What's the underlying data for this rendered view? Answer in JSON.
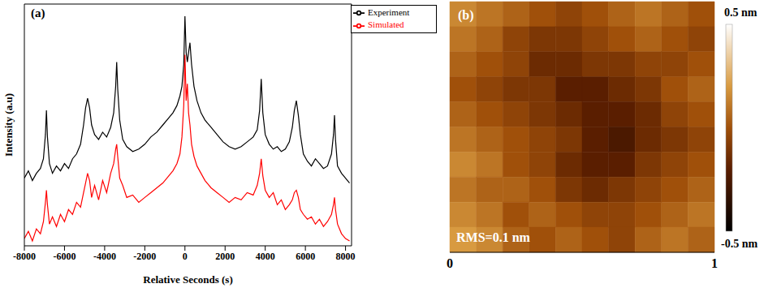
{
  "chart_data": [
    {
      "type": "line",
      "annotation": "(a)",
      "x_label": "Relative Seconds (s)",
      "y_label": "Intensity (a.u)",
      "xlim": [
        -8000,
        8300
      ],
      "xticks": [
        -8000,
        -6000,
        -4000,
        -2000,
        0,
        2000,
        4000,
        6000,
        8000
      ],
      "ylim": [
        0,
        100
      ],
      "tick_labels": "x",
      "legend": "upper right",
      "x": [
        -8000,
        -7800,
        -7600,
        -7400,
        -7200,
        -7050,
        -6950,
        -6900,
        -6850,
        -6750,
        -6600,
        -6400,
        -6200,
        -6000,
        -5800,
        -5600,
        -5400,
        -5200,
        -5050,
        -4950,
        -4850,
        -4750,
        -4650,
        -4500,
        -4300,
        -4100,
        -3900,
        -3700,
        -3550,
        -3450,
        -3400,
        -3350,
        -3250,
        -3100,
        -2900,
        -2600,
        -2300,
        -2000,
        -1700,
        -1400,
        -1100,
        -800,
        -600,
        -400,
        -250,
        -150,
        -60,
        0,
        60,
        120,
        180,
        250,
        330,
        450,
        600,
        800,
        1000,
        1300,
        1600,
        1900,
        2200,
        2500,
        2800,
        3100,
        3400,
        3600,
        3720,
        3800,
        3880,
        4000,
        4200,
        4400,
        4600,
        4800,
        5000,
        5200,
        5350,
        5450,
        5550,
        5650,
        5750,
        5900,
        6100,
        6300,
        6500,
        6700,
        6900,
        7100,
        7300,
        7400,
        7450,
        7500,
        7600,
        7800,
        8000,
        8200
      ],
      "series": [
        {
          "name": "Experiment",
          "color": "#000000",
          "values": [
            28,
            31,
            27,
            30,
            32,
            36,
            46,
            56,
            45,
            34,
            30,
            33,
            31,
            34,
            32,
            36,
            38,
            42,
            50,
            57,
            61,
            57,
            50,
            46,
            44,
            47,
            45,
            49,
            55,
            66,
            76,
            65,
            52,
            44,
            41,
            39,
            40,
            42,
            45,
            47,
            50,
            53,
            55,
            58,
            62,
            66,
            75,
            95,
            80,
            76,
            80,
            84,
            75,
            66,
            60,
            55,
            52,
            49,
            46,
            43,
            41,
            40,
            41,
            43,
            45,
            48,
            56,
            69,
            55,
            46,
            42,
            40,
            41,
            39,
            40,
            43,
            49,
            56,
            60,
            54,
            46,
            38,
            35,
            33,
            36,
            34,
            32,
            33,
            38,
            46,
            54,
            44,
            33,
            30,
            28,
            26
          ]
        },
        {
          "name": "Simulated",
          "color": "#ff0000",
          "values": [
            3,
            6,
            2,
            7,
            5,
            10,
            18,
            23,
            17,
            9,
            12,
            8,
            13,
            10,
            15,
            13,
            18,
            16,
            22,
            26,
            30,
            27,
            20,
            25,
            19,
            27,
            22,
            30,
            34,
            40,
            42,
            37,
            28,
            25,
            20,
            21,
            18,
            20,
            22,
            24,
            26,
            29,
            31,
            34,
            38,
            45,
            58,
            79,
            60,
            67,
            55,
            50,
            42,
            37,
            33,
            30,
            27,
            24,
            22,
            20,
            18,
            20,
            19,
            22,
            21,
            25,
            30,
            36,
            29,
            23,
            20,
            22,
            17,
            19,
            15,
            17,
            19,
            22,
            23,
            20,
            15,
            13,
            11,
            12,
            9,
            11,
            8,
            10,
            13,
            17,
            20,
            15,
            9,
            5,
            3,
            2
          ]
        }
      ]
    },
    {
      "type": "heatmap",
      "annotations": [
        "(b)",
        "RMS=0.1 nm"
      ],
      "xlim": [
        0,
        1
      ],
      "xticks": [
        0,
        1
      ],
      "ylim": [
        0,
        1
      ],
      "tick_labels": "x",
      "cells": [
        [
          0.15,
          0.1,
          0.05,
          0.0,
          -0.05,
          0.0,
          0.05,
          0.1,
          0.05,
          0.0
        ],
        [
          0.1,
          0.05,
          -0.05,
          -0.1,
          -0.1,
          -0.05,
          0.0,
          0.05,
          0.0,
          -0.05
        ],
        [
          0.05,
          0.0,
          -0.05,
          -0.15,
          -0.15,
          -0.1,
          -0.1,
          -0.05,
          -0.05,
          0.0
        ],
        [
          0.0,
          -0.05,
          -0.1,
          -0.1,
          -0.2,
          -0.2,
          -0.15,
          -0.1,
          0.0,
          0.05
        ],
        [
          0.05,
          0.0,
          -0.05,
          -0.1,
          -0.15,
          -0.2,
          -0.2,
          -0.15,
          -0.05,
          0.0
        ],
        [
          0.1,
          0.05,
          0.0,
          -0.05,
          -0.1,
          -0.2,
          -0.25,
          -0.15,
          -0.1,
          -0.05
        ],
        [
          0.15,
          0.1,
          0.0,
          -0.05,
          -0.15,
          -0.2,
          -0.2,
          -0.1,
          -0.05,
          0.0
        ],
        [
          0.1,
          0.05,
          0.05,
          0.0,
          -0.1,
          -0.15,
          -0.1,
          -0.05,
          0.0,
          0.05
        ],
        [
          0.15,
          0.1,
          0.0,
          0.05,
          0.0,
          -0.05,
          -0.05,
          0.0,
          0.05,
          0.1
        ],
        [
          0.2,
          0.15,
          0.05,
          0.0,
          0.05,
          0.0,
          -0.05,
          0.05,
          0.1,
          0.05
        ]
      ],
      "colorbar_range": [
        -0.5,
        0.5
      ],
      "colorbar_ticks": [
        {
          "value": 0.5,
          "label": "0.5 nm"
        },
        {
          "value": -0.5,
          "label": "-0.5 nm"
        }
      ]
    }
  ]
}
